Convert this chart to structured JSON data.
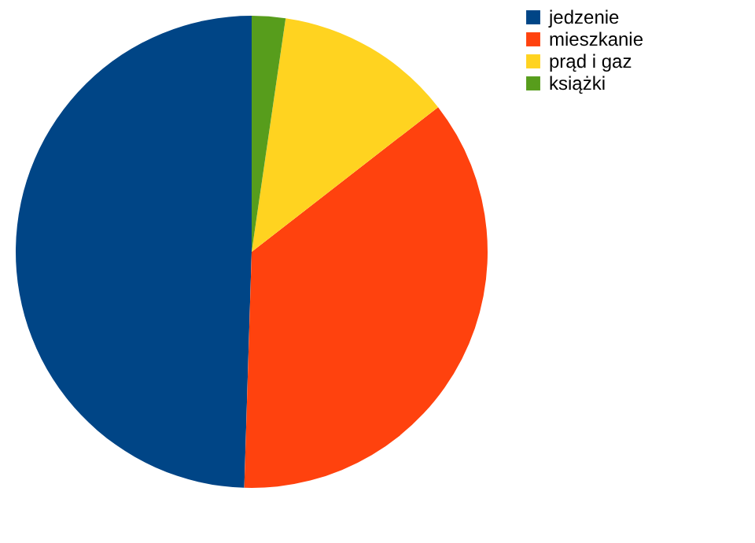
{
  "chart_data": {
    "type": "pie",
    "categories": [
      "jedzenie",
      "mieszkanie",
      "prąd i gaz",
      "książki"
    ],
    "values": [
      49.5,
      36,
      12.2,
      2.3
    ],
    "colors": [
      "#004586",
      "#ff420e",
      "#ffd320",
      "#579d1c"
    ],
    "legend": "right"
  }
}
